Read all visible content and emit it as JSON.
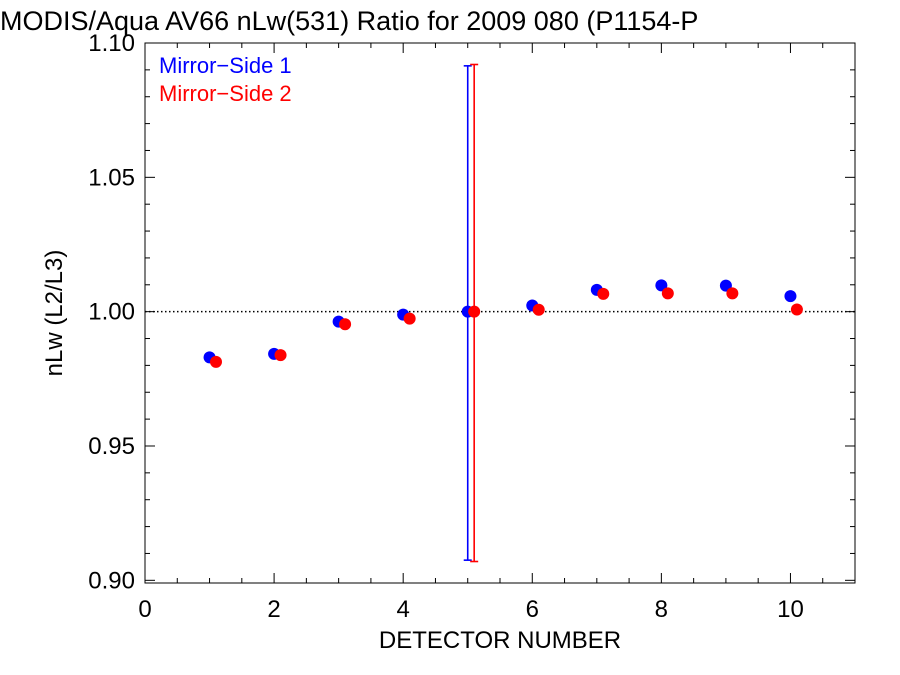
{
  "chart_data": {
    "type": "scatter",
    "title": "MODIS/Aqua AV66 nLw(531) Ratio for 2009 080 (P1154-P",
    "xlabel": "DETECTOR NUMBER",
    "ylabel": "nLw (L2/L3)",
    "xlim": [
      0,
      11
    ],
    "ylim": [
      0.899,
      1.1
    ],
    "x_ticks": [
      0,
      2,
      4,
      6,
      8,
      10
    ],
    "x_tick_labels": [
      "0",
      "2",
      "4",
      "6",
      "8",
      "10"
    ],
    "y_ticks": [
      0.9,
      0.95,
      1.0,
      1.05,
      1.1
    ],
    "y_tick_labels": [
      "0.90",
      "0.95",
      "1.00",
      "1.05",
      "1.10"
    ],
    "reference_line": 1.0,
    "legend_position": "top-left",
    "grid": false,
    "series": [
      {
        "name": "Mirror−Side 1",
        "color": "#0000ff",
        "x": [
          1,
          2,
          3,
          4,
          5,
          6,
          7,
          8,
          9,
          10
        ],
        "values": [
          0.983,
          0.9843,
          0.9963,
          0.9989,
          1.0,
          1.0023,
          1.0081,
          1.0098,
          1.0097,
          1.0058
        ],
        "error_bar": {
          "x": 5,
          "low": 0.9075,
          "high": 1.0915
        }
      },
      {
        "name": "Mirror−Side 2",
        "color": "#ff0000",
        "x": [
          1.1,
          2.1,
          3.1,
          4.1,
          5.1,
          6.1,
          7.1,
          8.1,
          9.1,
          10.1
        ],
        "values": [
          0.9813,
          0.9838,
          0.9953,
          0.9974,
          1.0,
          1.0007,
          1.0066,
          1.0068,
          1.0068,
          1.0008
        ],
        "error_bar": {
          "x": 5.1,
          "low": 0.907,
          "high": 1.092
        }
      }
    ]
  }
}
